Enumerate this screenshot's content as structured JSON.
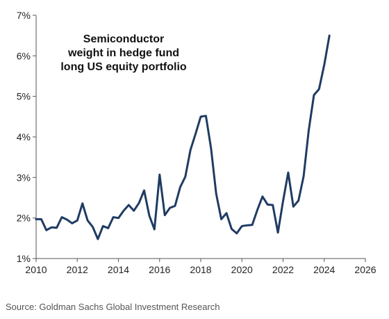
{
  "chart_data": {
    "type": "line",
    "title_lines": [
      "Semiconductor",
      "weight in hedge fund",
      "long US equity portfolio"
    ],
    "source": "Source: Goldman Sachs Global Investment Research",
    "xlim": [
      2010,
      2026
    ],
    "ylim": [
      1,
      7
    ],
    "x_ticks": [
      2010,
      2012,
      2014,
      2016,
      2018,
      2020,
      2022,
      2024,
      2026
    ],
    "x_tick_labels": [
      "2010",
      "2012",
      "2014",
      "2016",
      "2018",
      "2020",
      "2022",
      "2024",
      "2026"
    ],
    "y_ticks": [
      1,
      2,
      3,
      4,
      5,
      6,
      7
    ],
    "y_tick_labels": [
      "1%",
      "2%",
      "3%",
      "4%",
      "5%",
      "6%",
      "7%"
    ],
    "grid": false,
    "legend": "none",
    "line_color": "#1f3b63",
    "series": [
      {
        "x": [
          2010.0,
          2010.25,
          2010.5,
          2010.75,
          2011.0,
          2011.25,
          2011.5,
          2011.75,
          2012.0,
          2012.25,
          2012.5,
          2012.75,
          2013.0,
          2013.25,
          2013.5,
          2013.75,
          2014.0,
          2014.25,
          2014.5,
          2014.75,
          2015.0,
          2015.25,
          2015.5,
          2015.75,
          2016.0,
          2016.25,
          2016.5,
          2016.75,
          2017.0,
          2017.25,
          2017.5,
          2017.75,
          2018.0,
          2018.25,
          2018.5,
          2018.75,
          2019.0,
          2019.25,
          2019.5,
          2019.75,
          2020.0,
          2020.25,
          2020.5,
          2020.75,
          2021.0,
          2021.25,
          2021.5,
          2021.75,
          2022.0,
          2022.25,
          2022.5,
          2022.75,
          2023.0,
          2023.25,
          2023.5,
          2023.75,
          2024.0,
          2024.25
        ],
        "values": [
          1.97,
          1.97,
          1.7,
          1.77,
          1.76,
          2.02,
          1.96,
          1.87,
          1.94,
          2.36,
          1.94,
          1.78,
          1.48,
          1.8,
          1.75,
          2.02,
          2.0,
          2.18,
          2.32,
          2.18,
          2.37,
          2.68,
          2.06,
          1.72,
          3.07,
          2.07,
          2.25,
          2.3,
          2.76,
          3.02,
          3.68,
          4.08,
          4.5,
          4.52,
          3.72,
          2.6,
          1.97,
          2.12,
          1.73,
          1.62,
          1.8,
          1.82,
          1.83,
          2.2,
          2.53,
          2.33,
          2.32,
          1.64,
          2.42,
          3.12,
          2.28,
          2.43,
          3.03,
          4.17,
          5.03,
          5.18,
          5.78,
          6.5
        ]
      }
    ]
  }
}
